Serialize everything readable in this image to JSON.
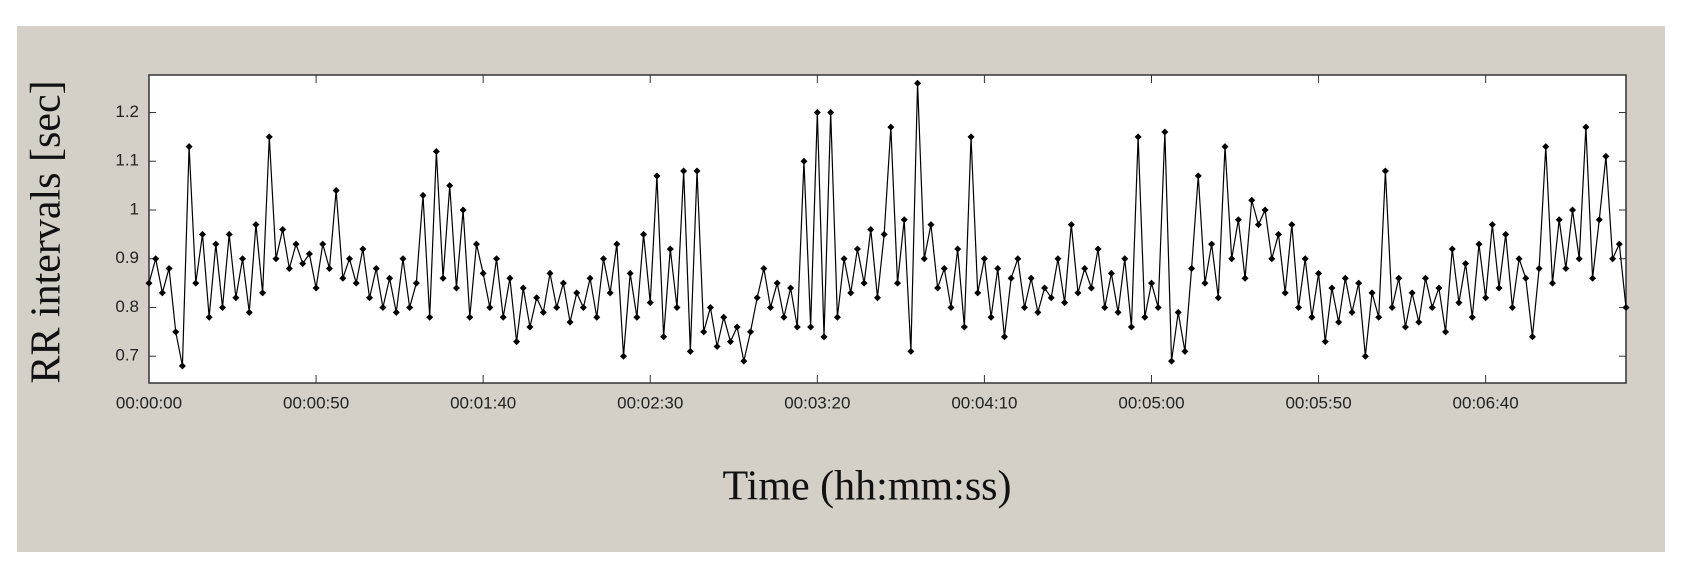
{
  "chart_data": {
    "type": "line",
    "y_label": "RR intervals [sec]",
    "x_label": "Time (hh:mm:ss)",
    "color": "#000000",
    "grid": false,
    "xlim": [
      0,
      442
    ],
    "ylim": [
      0.645,
      1.277
    ],
    "yticks": [
      0.7,
      0.8,
      0.9,
      1,
      1.1,
      1.2
    ],
    "xticks": [
      {
        "value": 0,
        "label": "00:00:00"
      },
      {
        "value": 50,
        "label": "00:00:50"
      },
      {
        "value": 100,
        "label": "00:01:40"
      },
      {
        "value": 150,
        "label": "00:02:30"
      },
      {
        "value": 200,
        "label": "00:03:20"
      },
      {
        "value": 250,
        "label": "00:04:10"
      },
      {
        "value": 300,
        "label": "00:05:00"
      },
      {
        "value": 350,
        "label": "00:05:50"
      },
      {
        "value": 400,
        "label": "00:06:40"
      }
    ],
    "x": [
      0,
      2,
      4,
      6,
      8,
      10,
      12,
      14,
      16,
      18,
      20,
      22,
      24,
      26,
      28,
      30,
      32,
      34,
      36,
      38,
      40,
      42,
      44,
      46,
      48,
      50,
      52,
      54,
      56,
      58,
      60,
      62,
      64,
      66,
      68,
      70,
      72,
      74,
      76,
      78,
      80,
      82,
      84,
      86,
      88,
      90,
      92,
      94,
      96,
      98,
      100,
      102,
      104,
      106,
      108,
      110,
      112,
      114,
      116,
      118,
      120,
      122,
      124,
      126,
      128,
      130,
      132,
      134,
      136,
      138,
      140,
      142,
      144,
      146,
      148,
      150,
      152,
      154,
      156,
      158,
      160,
      162,
      164,
      166,
      168,
      170,
      172,
      174,
      176,
      178,
      180,
      182,
      184,
      186,
      188,
      190,
      192,
      194,
      196,
      198,
      200,
      202,
      204,
      206,
      208,
      210,
      212,
      214,
      216,
      218,
      220,
      222,
      224,
      226,
      228,
      230,
      232,
      234,
      236,
      238,
      240,
      242,
      244,
      246,
      248,
      250,
      252,
      254,
      256,
      258,
      260,
      262,
      264,
      266,
      268,
      270,
      272,
      274,
      276,
      278,
      280,
      282,
      284,
      286,
      288,
      290,
      292,
      294,
      296,
      298,
      300,
      302,
      304,
      306,
      308,
      310,
      312,
      314,
      316,
      318,
      320,
      322,
      324,
      326,
      328,
      330,
      332,
      334,
      336,
      338,
      340,
      342,
      344,
      346,
      348,
      350,
      352,
      354,
      356,
      358,
      360,
      362,
      364,
      366,
      368,
      370,
      372,
      374,
      376,
      378,
      380,
      382,
      384,
      386,
      388,
      390,
      392,
      394,
      396,
      398,
      400,
      402,
      404,
      406,
      408,
      410,
      412,
      414,
      416,
      418,
      420,
      422,
      424,
      426,
      428,
      430,
      432,
      434,
      436,
      438,
      440,
      442
    ],
    "values": [
      0.85,
      0.9,
      0.83,
      0.88,
      0.75,
      0.68,
      1.13,
      0.85,
      0.95,
      0.78,
      0.93,
      0.8,
      0.95,
      0.82,
      0.9,
      0.79,
      0.97,
      0.83,
      1.15,
      0.9,
      0.96,
      0.88,
      0.93,
      0.89,
      0.91,
      0.84,
      0.93,
      0.88,
      1.04,
      0.86,
      0.9,
      0.85,
      0.92,
      0.82,
      0.88,
      0.8,
      0.86,
      0.79,
      0.9,
      0.8,
      0.85,
      1.03,
      0.78,
      1.12,
      0.86,
      1.05,
      0.84,
      1.0,
      0.78,
      0.93,
      0.87,
      0.8,
      0.9,
      0.78,
      0.86,
      0.73,
      0.84,
      0.76,
      0.82,
      0.79,
      0.87,
      0.8,
      0.85,
      0.77,
      0.83,
      0.8,
      0.86,
      0.78,
      0.9,
      0.83,
      0.93,
      0.7,
      0.87,
      0.78,
      0.95,
      0.81,
      1.07,
      0.74,
      0.92,
      0.8,
      1.08,
      0.71,
      1.08,
      0.75,
      0.8,
      0.72,
      0.78,
      0.73,
      0.76,
      0.69,
      0.75,
      0.82,
      0.88,
      0.8,
      0.85,
      0.78,
      0.84,
      0.76,
      1.1,
      0.76,
      1.2,
      0.74,
      1.2,
      0.78,
      0.9,
      0.83,
      0.92,
      0.85,
      0.96,
      0.82,
      0.95,
      1.17,
      0.85,
      0.98,
      0.71,
      1.26,
      0.9,
      0.97,
      0.84,
      0.88,
      0.8,
      0.92,
      0.76,
      1.15,
      0.83,
      0.9,
      0.78,
      0.88,
      0.74,
      0.86,
      0.9,
      0.8,
      0.86,
      0.79,
      0.84,
      0.82,
      0.9,
      0.81,
      0.97,
      0.83,
      0.88,
      0.84,
      0.92,
      0.8,
      0.87,
      0.79,
      0.9,
      0.76,
      1.15,
      0.78,
      0.85,
      0.8,
      1.16,
      0.69,
      0.79,
      0.71,
      0.88,
      1.07,
      0.85,
      0.93,
      0.82,
      1.13,
      0.9,
      0.98,
      0.86,
      1.02,
      0.97,
      1.0,
      0.9,
      0.95,
      0.83,
      0.97,
      0.8,
      0.9,
      0.78,
      0.87,
      0.73,
      0.84,
      0.77,
      0.86,
      0.79,
      0.85,
      0.7,
      0.83,
      0.78,
      1.08,
      0.8,
      0.86,
      0.76,
      0.83,
      0.77,
      0.86,
      0.8,
      0.84,
      0.75,
      0.92,
      0.81,
      0.89,
      0.78,
      0.93,
      0.82,
      0.97,
      0.84,
      0.95,
      0.8,
      0.9,
      0.86,
      0.74,
      0.88,
      1.13,
      0.85,
      0.98,
      0.88,
      1.0,
      0.9,
      1.17,
      0.86,
      0.98,
      1.11,
      0.9,
      0.93,
      0.8
    ]
  }
}
